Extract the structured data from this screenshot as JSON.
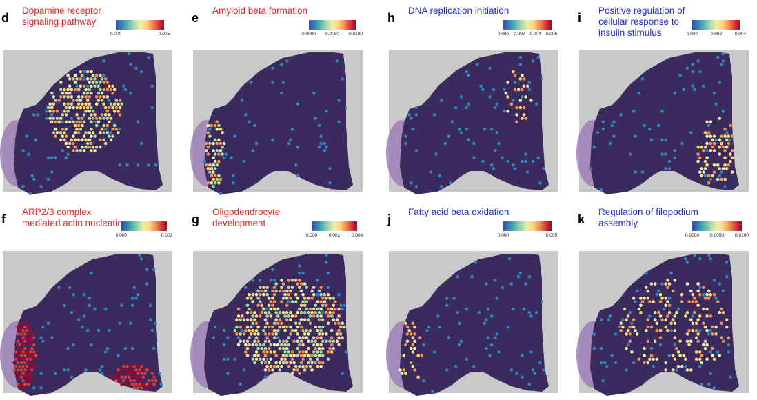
{
  "colorbar_gradient": [
    "#3a4fa3",
    "#2d87bb",
    "#57b9b3",
    "#a9dba4",
    "#eef0a4",
    "#fdd47f",
    "#f69250",
    "#d73c3b",
    "#a50026"
  ],
  "colors": {
    "red_title": "#e8241c",
    "blue_title": "#1f2bd8",
    "tissue_base": "#3b2a5e",
    "slide_gray": "#c8c9c8",
    "olfactory_purple": "#9d7fb8"
  },
  "panels": [
    {
      "label": "d",
      "title_lines": [
        "Dopamine receptor",
        "signaling pathway"
      ],
      "title_color": "red",
      "ticks": [
        "0.000",
        "0.005"
      ],
      "hotspots": [
        {
          "region": "striatum",
          "intensity": "medium"
        }
      ]
    },
    {
      "label": "e",
      "title_lines": [
        "Amyloid beta formation"
      ],
      "title_color": "red",
      "ticks": [
        "0.0000",
        "0.0050",
        "0.0100"
      ],
      "hotspots": [
        {
          "region": "olfactory-bulb",
          "intensity": "medium"
        }
      ]
    },
    {
      "label": "h",
      "title_lines": [
        "DNA replication initiation"
      ],
      "title_color": "blue",
      "ticks": [
        "0.000",
        "0.002",
        "0.004",
        "0.006"
      ],
      "hotspots": [
        {
          "region": "hippocampus",
          "intensity": "sparse"
        }
      ]
    },
    {
      "label": "i",
      "title_lines": [
        "Positive regulation of",
        "cellular response to",
        "insulin stimulus"
      ],
      "title_color": "blue",
      "ticks": [
        "0.000",
        "0.002",
        "0.004"
      ],
      "hotspots": [
        {
          "region": "cortex-posterior",
          "intensity": "sparse"
        }
      ]
    },
    {
      "label": "f",
      "title_lines": [
        "ARP2/3 complex",
        "mediated actin nucleation"
      ],
      "title_color": "red",
      "ticks": [
        "0.000",
        "0.003"
      ],
      "hotspots": [
        {
          "region": "olfactory-bulb",
          "intensity": "high"
        },
        {
          "region": "brainstem",
          "intensity": "high"
        }
      ]
    },
    {
      "label": "g",
      "title_lines": [
        "Oligodendrocyte",
        "development"
      ],
      "title_color": "red",
      "ticks": [
        "0.000",
        "0.002",
        "0.004"
      ],
      "hotspots": [
        {
          "region": "white-matter",
          "intensity": "medium"
        }
      ]
    },
    {
      "label": "j",
      "title_lines": [
        "Fatty acid beta oxidation"
      ],
      "title_color": "blue",
      "ticks": [
        "0.000",
        "0.005"
      ],
      "hotspots": [
        {
          "region": "olfactory-bulb",
          "intensity": "sparse"
        }
      ]
    },
    {
      "label": "k",
      "title_lines": [
        "Regulation of filopodium",
        "assembly"
      ],
      "title_color": "blue",
      "ticks": [
        "0.0000",
        "0.0050",
        "0.0100"
      ],
      "hotspots": [
        {
          "region": "white-matter",
          "intensity": "sparse"
        }
      ]
    }
  ]
}
